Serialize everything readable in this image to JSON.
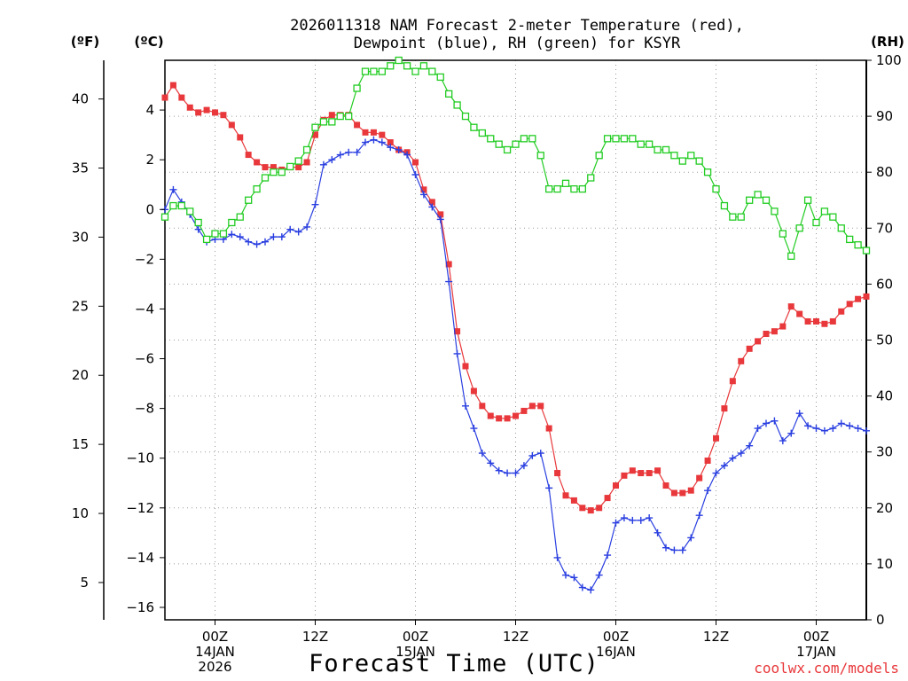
{
  "chart_data": {
    "type": "line",
    "title_line1": "2026011318 NAM Forecast 2-meter Temperature (red),",
    "title_line2": "Dewpoint (blue), RH (green) for KSYR",
    "x_label": "Forecast Time (UTC)",
    "x_hours_range": [
      0,
      84
    ],
    "x_ticks": [
      {
        "h": 6,
        "lines": [
          "00Z",
          "14JAN",
          "2026"
        ]
      },
      {
        "h": 18,
        "lines": [
          "12Z"
        ]
      },
      {
        "h": 30,
        "lines": [
          "00Z",
          "15JAN"
        ]
      },
      {
        "h": 42,
        "lines": [
          "12Z"
        ]
      },
      {
        "h": 54,
        "lines": [
          "00Z",
          "16JAN"
        ]
      },
      {
        "h": 66,
        "lines": [
          "12Z"
        ]
      },
      {
        "h": 78,
        "lines": [
          "00Z",
          "17JAN"
        ]
      }
    ],
    "left_axis_c": {
      "unit": "(ºC)",
      "range": [
        -16.5,
        6
      ],
      "ticks": [
        4,
        2,
        0,
        -2,
        -4,
        -6,
        -8,
        -10,
        -12,
        -14,
        -16
      ]
    },
    "left_axis_f": {
      "unit": "(ºF)",
      "ticks": [
        40,
        35,
        30,
        25,
        20,
        15,
        10,
        5
      ]
    },
    "right_axis_rh": {
      "unit": "(RH)",
      "range": [
        0,
        100
      ],
      "ticks": [
        100,
        90,
        80,
        70,
        60,
        50,
        40,
        30,
        20,
        10,
        0
      ]
    },
    "credit": "coolwx.com/models",
    "series": [
      {
        "name": "Temperature",
        "unit": "C",
        "color": "#e8383b",
        "marker": "filled-square",
        "x": [
          0,
          1,
          2,
          3,
          4,
          5,
          6,
          7,
          8,
          9,
          10,
          11,
          12,
          13,
          14,
          15,
          16,
          17,
          18,
          19,
          20,
          21,
          22,
          23,
          24,
          25,
          26,
          27,
          28,
          29,
          30,
          31,
          32,
          33,
          34,
          35,
          36,
          37,
          38,
          39,
          40,
          41,
          42,
          43,
          44,
          45,
          46,
          47,
          48,
          49,
          50,
          51,
          52,
          53,
          54,
          55,
          56,
          57,
          58,
          59,
          60,
          61,
          62,
          63,
          64,
          65,
          66,
          67,
          68,
          69,
          70,
          71,
          72,
          73,
          74,
          75,
          76,
          77,
          78,
          79,
          80,
          81,
          82,
          83,
          84
        ],
        "values": [
          4.5,
          5.0,
          4.5,
          4.1,
          3.9,
          4.0,
          3.9,
          3.8,
          3.4,
          2.9,
          2.2,
          1.9,
          1.7,
          1.7,
          1.6,
          1.7,
          1.7,
          1.9,
          3.0,
          3.6,
          3.8,
          3.8,
          3.8,
          3.4,
          3.1,
          3.1,
          3.0,
          2.7,
          2.4,
          2.3,
          1.9,
          0.8,
          0.3,
          -0.2,
          -2.2,
          -4.9,
          -6.3,
          -7.3,
          -7.9,
          -8.3,
          -8.4,
          -8.4,
          -8.3,
          -8.1,
          -7.9,
          -7.9,
          -8.8,
          -10.6,
          -11.5,
          -11.7,
          -12.0,
          -12.1,
          -12.0,
          -11.6,
          -11.1,
          -10.7,
          -10.5,
          -10.6,
          -10.6,
          -10.5,
          -11.1,
          -11.4,
          -11.4,
          -11.3,
          -10.8,
          -10.1,
          -9.2,
          -8.0,
          -6.9,
          -6.1,
          -5.6,
          -5.3,
          -5.0,
          -4.9,
          -4.7,
          -3.9,
          -4.2,
          -4.5,
          -4.5,
          -4.6,
          -4.5,
          -4.1,
          -3.8,
          -3.6,
          -3.5
        ]
      },
      {
        "name": "Dewpoint",
        "unit": "C",
        "color": "#2a3fe0",
        "marker": "plus",
        "x": [
          0,
          1,
          2,
          3,
          4,
          5,
          6,
          7,
          8,
          9,
          10,
          11,
          12,
          13,
          14,
          15,
          16,
          17,
          18,
          19,
          20,
          21,
          22,
          23,
          24,
          25,
          26,
          27,
          28,
          29,
          30,
          31,
          32,
          33,
          34,
          35,
          36,
          37,
          38,
          39,
          40,
          41,
          42,
          43,
          44,
          45,
          46,
          47,
          48,
          49,
          50,
          51,
          52,
          53,
          54,
          55,
          56,
          57,
          58,
          59,
          60,
          61,
          62,
          63,
          64,
          65,
          66,
          67,
          68,
          69,
          70,
          71,
          72,
          73,
          74,
          75,
          76,
          77,
          78,
          79,
          80,
          81,
          82,
          83,
          84
        ],
        "values": [
          0.0,
          0.8,
          0.3,
          -0.2,
          -0.8,
          -1.3,
          -1.2,
          -1.2,
          -1.0,
          -1.1,
          -1.3,
          -1.4,
          -1.3,
          -1.1,
          -1.1,
          -0.8,
          -0.9,
          -0.7,
          0.2,
          1.8,
          2.0,
          2.2,
          2.3,
          2.3,
          2.7,
          2.8,
          2.7,
          2.5,
          2.4,
          2.2,
          1.4,
          0.6,
          0.1,
          -0.4,
          -2.9,
          -5.8,
          -7.9,
          -8.8,
          -9.8,
          -10.2,
          -10.5,
          -10.6,
          -10.6,
          -10.3,
          -9.9,
          -9.8,
          -11.2,
          -14.0,
          -14.7,
          -14.8,
          -15.2,
          -15.3,
          -14.7,
          -13.9,
          -12.6,
          -12.4,
          -12.5,
          -12.5,
          -12.4,
          -13.0,
          -13.6,
          -13.7,
          -13.7,
          -13.2,
          -12.3,
          -11.3,
          -10.6,
          -10.3,
          -10.0,
          -9.8,
          -9.5,
          -8.8,
          -8.6,
          -8.5,
          -9.3,
          -9.0,
          -8.2,
          -8.7,
          -8.8,
          -8.9,
          -8.8,
          -8.6,
          -8.7,
          -8.8,
          -8.9
        ]
      },
      {
        "name": "RH",
        "unit": "%",
        "color": "#22cc22",
        "marker": "open-square",
        "x": [
          0,
          1,
          2,
          3,
          4,
          5,
          6,
          7,
          8,
          9,
          10,
          11,
          12,
          13,
          14,
          15,
          16,
          17,
          18,
          19,
          20,
          21,
          22,
          23,
          24,
          25,
          26,
          27,
          28,
          29,
          30,
          31,
          32,
          33,
          34,
          35,
          36,
          37,
          38,
          39,
          40,
          41,
          42,
          43,
          44,
          45,
          46,
          47,
          48,
          49,
          50,
          51,
          52,
          53,
          54,
          55,
          56,
          57,
          58,
          59,
          60,
          61,
          62,
          63,
          64,
          65,
          66,
          67,
          68,
          69,
          70,
          71,
          72,
          73,
          74,
          75,
          76,
          77,
          78,
          79,
          80,
          81,
          82,
          83,
          84
        ],
        "values": [
          72,
          74,
          74,
          73,
          71,
          68,
          69,
          69,
          71,
          72,
          75,
          77,
          79,
          80,
          80,
          81,
          82,
          84,
          88,
          89,
          89,
          90,
          90,
          95,
          98,
          98,
          98,
          99,
          100,
          99,
          98,
          99,
          98,
          97,
          94,
          92,
          90,
          88,
          87,
          86,
          85,
          84,
          85,
          86,
          86,
          83,
          77,
          77,
          78,
          77,
          77,
          79,
          83,
          86,
          86,
          86,
          86,
          85,
          85,
          84,
          84,
          83,
          82,
          83,
          82,
          80,
          77,
          74,
          72,
          72,
          75,
          76,
          75,
          73,
          69,
          65,
          70,
          75,
          71,
          73,
          72,
          70,
          68,
          67,
          66
        ]
      }
    ]
  }
}
